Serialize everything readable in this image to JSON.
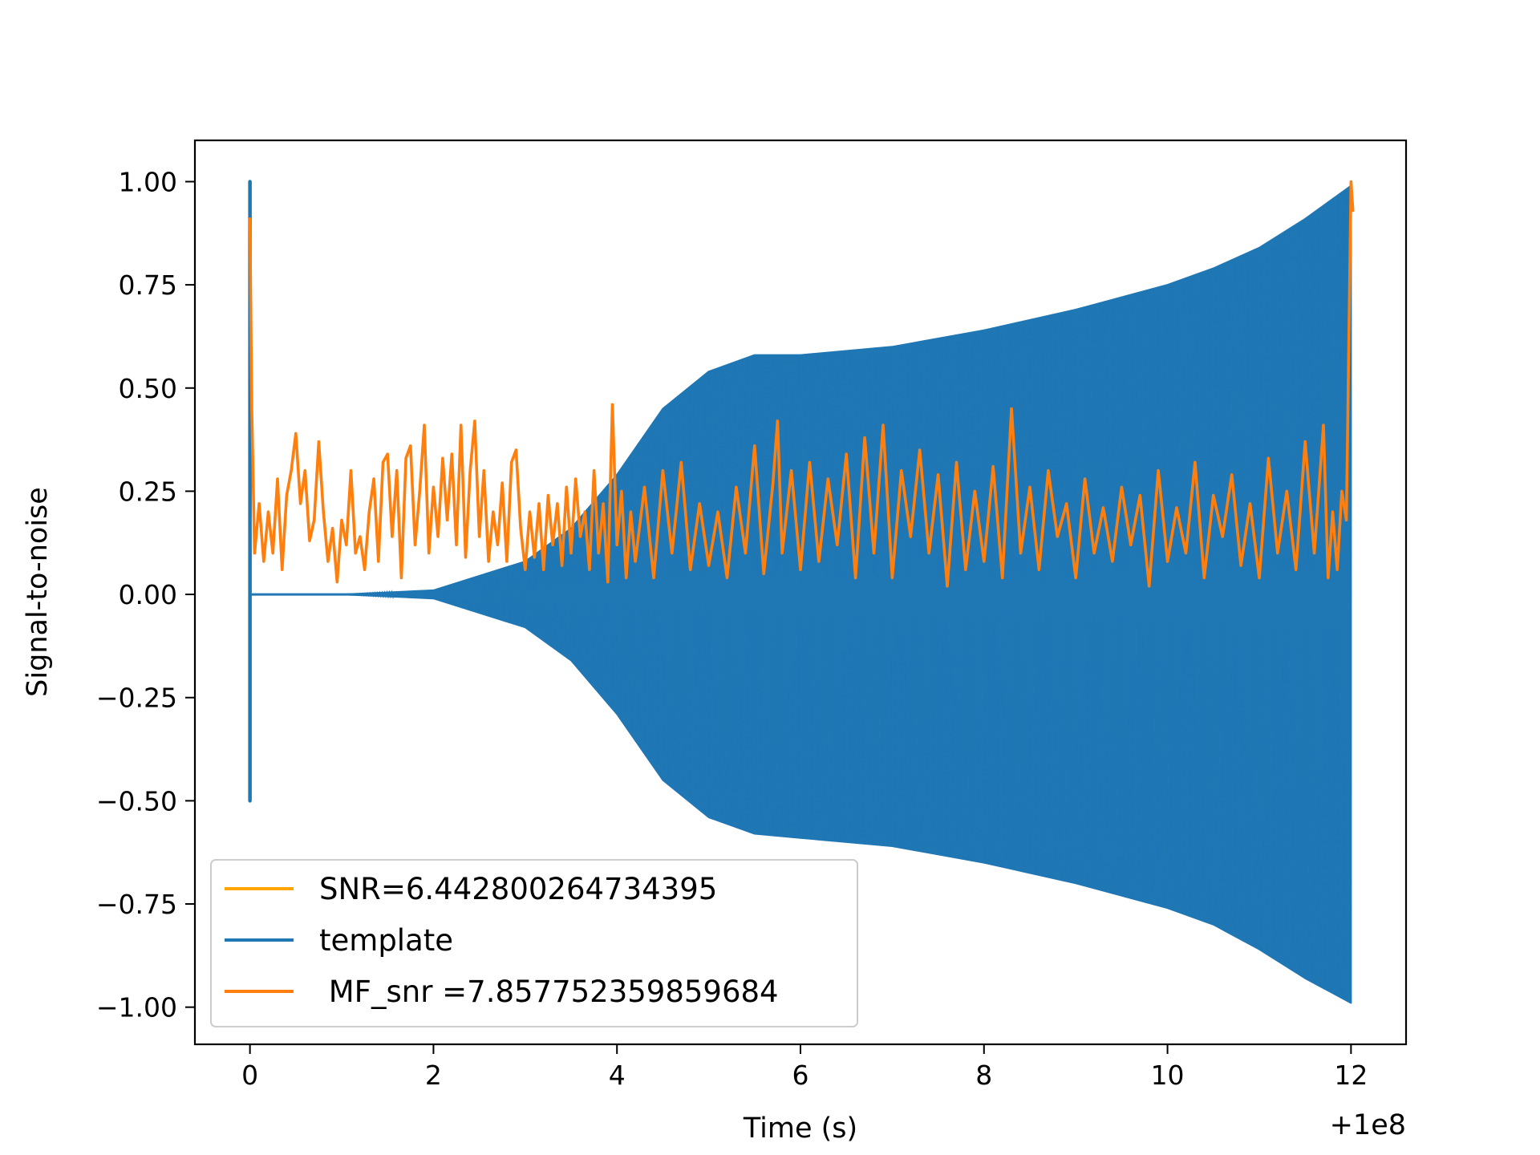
{
  "chart_data": {
    "type": "line",
    "title": "",
    "xlabel": "Time (s)",
    "ylabel": "Signal-to-noise",
    "x_offset_label": "+1e8",
    "xlim": [
      -0.6,
      12.6
    ],
    "ylim": [
      -1.09,
      1.1
    ],
    "x_ticks": [
      0,
      2,
      4,
      6,
      8,
      10,
      12
    ],
    "x_tick_labels": [
      "0",
      "2",
      "4",
      "6",
      "8",
      "10",
      "12"
    ],
    "y_ticks": [
      1.0,
      0.75,
      0.5,
      0.25,
      0.0,
      -0.25,
      -0.5,
      -0.75,
      -1.0
    ],
    "y_tick_labels": [
      "1.00",
      "0.75",
      "0.50",
      "0.25",
      "0.00",
      "−0.25",
      "−0.50",
      "−0.75",
      "−1.00"
    ],
    "grid": false,
    "legend_position": "lower-left",
    "series": [
      {
        "name": "SNR=6.442800264734395",
        "color": "#FFA500",
        "points": []
      },
      {
        "name": "template",
        "color": "#1f77b4",
        "style": "dense-oscillation-envelope",
        "x_range": [
          0.0,
          12.0
        ],
        "envelope_upper": [
          [
            0.0,
            0.0
          ],
          [
            1.0,
            0.0
          ],
          [
            2.0,
            0.01
          ],
          [
            3.0,
            0.08
          ],
          [
            3.5,
            0.16
          ],
          [
            4.0,
            0.29
          ],
          [
            4.5,
            0.45
          ],
          [
            5.0,
            0.54
          ],
          [
            5.5,
            0.58
          ],
          [
            6.0,
            0.58
          ],
          [
            7.0,
            0.6
          ],
          [
            8.0,
            0.64
          ],
          [
            9.0,
            0.69
          ],
          [
            10.0,
            0.75
          ],
          [
            10.5,
            0.79
          ],
          [
            11.0,
            0.84
          ],
          [
            11.5,
            0.91
          ],
          [
            12.0,
            0.99
          ]
        ],
        "envelope_lower": [
          [
            0.0,
            0.0
          ],
          [
            1.0,
            0.0
          ],
          [
            2.0,
            -0.01
          ],
          [
            3.0,
            -0.08
          ],
          [
            3.5,
            -0.16
          ],
          [
            4.0,
            -0.29
          ],
          [
            4.5,
            -0.45
          ],
          [
            5.0,
            -0.54
          ],
          [
            5.5,
            -0.58
          ],
          [
            6.0,
            -0.59
          ],
          [
            7.0,
            -0.61
          ],
          [
            8.0,
            -0.65
          ],
          [
            9.0,
            -0.7
          ],
          [
            10.0,
            -0.76
          ],
          [
            10.5,
            -0.8
          ],
          [
            11.0,
            -0.86
          ],
          [
            11.5,
            -0.93
          ],
          [
            12.0,
            -0.99
          ]
        ],
        "initial_spike": [
          1.0,
          -0.5
        ]
      },
      {
        "name": " MF_snr =7.857752359859684",
        "color": "#ff7f0e",
        "x_range": [
          0.0,
          12.0
        ],
        "points": [
          [
            0.0,
            0.91
          ],
          [
            0.02,
            0.45
          ],
          [
            0.05,
            0.1
          ],
          [
            0.1,
            0.22
          ],
          [
            0.15,
            0.08
          ],
          [
            0.2,
            0.2
          ],
          [
            0.25,
            0.1
          ],
          [
            0.3,
            0.28
          ],
          [
            0.35,
            0.06
          ],
          [
            0.4,
            0.24
          ],
          [
            0.45,
            0.3
          ],
          [
            0.5,
            0.39
          ],
          [
            0.55,
            0.22
          ],
          [
            0.6,
            0.3
          ],
          [
            0.65,
            0.13
          ],
          [
            0.7,
            0.18
          ],
          [
            0.75,
            0.37
          ],
          [
            0.8,
            0.2
          ],
          [
            0.85,
            0.08
          ],
          [
            0.9,
            0.16
          ],
          [
            0.95,
            0.03
          ],
          [
            1.0,
            0.18
          ],
          [
            1.05,
            0.12
          ],
          [
            1.1,
            0.3
          ],
          [
            1.15,
            0.1
          ],
          [
            1.2,
            0.14
          ],
          [
            1.25,
            0.06
          ],
          [
            1.3,
            0.2
          ],
          [
            1.35,
            0.28
          ],
          [
            1.4,
            0.08
          ],
          [
            1.45,
            0.32
          ],
          [
            1.5,
            0.34
          ],
          [
            1.55,
            0.14
          ],
          [
            1.6,
            0.3
          ],
          [
            1.65,
            0.04
          ],
          [
            1.7,
            0.33
          ],
          [
            1.75,
            0.36
          ],
          [
            1.8,
            0.12
          ],
          [
            1.85,
            0.25
          ],
          [
            1.9,
            0.41
          ],
          [
            1.95,
            0.1
          ],
          [
            2.0,
            0.26
          ],
          [
            2.05,
            0.14
          ],
          [
            2.1,
            0.33
          ],
          [
            2.15,
            0.18
          ],
          [
            2.2,
            0.34
          ],
          [
            2.25,
            0.12
          ],
          [
            2.3,
            0.41
          ],
          [
            2.35,
            0.09
          ],
          [
            2.4,
            0.3
          ],
          [
            2.45,
            0.42
          ],
          [
            2.5,
            0.14
          ],
          [
            2.55,
            0.3
          ],
          [
            2.6,
            0.08
          ],
          [
            2.65,
            0.2
          ],
          [
            2.7,
            0.12
          ],
          [
            2.75,
            0.27
          ],
          [
            2.8,
            0.08
          ],
          [
            2.85,
            0.32
          ],
          [
            2.9,
            0.35
          ],
          [
            2.95,
            0.16
          ],
          [
            3.0,
            0.06
          ],
          [
            3.05,
            0.2
          ],
          [
            3.1,
            0.09
          ],
          [
            3.15,
            0.22
          ],
          [
            3.2,
            0.06
          ],
          [
            3.25,
            0.24
          ],
          [
            3.3,
            0.12
          ],
          [
            3.35,
            0.22
          ],
          [
            3.4,
            0.07
          ],
          [
            3.45,
            0.26
          ],
          [
            3.5,
            0.1
          ],
          [
            3.55,
            0.28
          ],
          [
            3.6,
            0.14
          ],
          [
            3.65,
            0.2
          ],
          [
            3.7,
            0.06
          ],
          [
            3.75,
            0.3
          ],
          [
            3.8,
            0.1
          ],
          [
            3.85,
            0.22
          ],
          [
            3.9,
            0.03
          ],
          [
            3.95,
            0.46
          ],
          [
            4.0,
            0.12
          ],
          [
            4.05,
            0.25
          ],
          [
            4.1,
            0.04
          ],
          [
            4.15,
            0.2
          ],
          [
            4.2,
            0.08
          ],
          [
            4.3,
            0.26
          ],
          [
            4.4,
            0.04
          ],
          [
            4.5,
            0.3
          ],
          [
            4.6,
            0.1
          ],
          [
            4.7,
            0.32
          ],
          [
            4.8,
            0.06
          ],
          [
            4.9,
            0.22
          ],
          [
            5.0,
            0.07
          ],
          [
            5.1,
            0.2
          ],
          [
            5.2,
            0.04
          ],
          [
            5.3,
            0.26
          ],
          [
            5.4,
            0.1
          ],
          [
            5.5,
            0.36
          ],
          [
            5.6,
            0.05
          ],
          [
            5.7,
            0.27
          ],
          [
            5.75,
            0.42
          ],
          [
            5.8,
            0.1
          ],
          [
            5.9,
            0.3
          ],
          [
            6.0,
            0.06
          ],
          [
            6.1,
            0.32
          ],
          [
            6.2,
            0.08
          ],
          [
            6.3,
            0.28
          ],
          [
            6.4,
            0.12
          ],
          [
            6.5,
            0.34
          ],
          [
            6.6,
            0.04
          ],
          [
            6.7,
            0.38
          ],
          [
            6.8,
            0.1
          ],
          [
            6.9,
            0.41
          ],
          [
            7.0,
            0.04
          ],
          [
            7.1,
            0.3
          ],
          [
            7.2,
            0.14
          ],
          [
            7.3,
            0.35
          ],
          [
            7.4,
            0.1
          ],
          [
            7.5,
            0.29
          ],
          [
            7.6,
            0.02
          ],
          [
            7.7,
            0.32
          ],
          [
            7.8,
            0.06
          ],
          [
            7.9,
            0.25
          ],
          [
            8.0,
            0.08
          ],
          [
            8.1,
            0.31
          ],
          [
            8.2,
            0.04
          ],
          [
            8.3,
            0.45
          ],
          [
            8.4,
            0.1
          ],
          [
            8.5,
            0.26
          ],
          [
            8.6,
            0.06
          ],
          [
            8.7,
            0.3
          ],
          [
            8.8,
            0.14
          ],
          [
            8.9,
            0.22
          ],
          [
            9.0,
            0.04
          ],
          [
            9.1,
            0.28
          ],
          [
            9.2,
            0.1
          ],
          [
            9.3,
            0.21
          ],
          [
            9.4,
            0.08
          ],
          [
            9.5,
            0.26
          ],
          [
            9.6,
            0.12
          ],
          [
            9.7,
            0.24
          ],
          [
            9.8,
            0.02
          ],
          [
            9.9,
            0.3
          ],
          [
            10.0,
            0.08
          ],
          [
            10.1,
            0.21
          ],
          [
            10.2,
            0.1
          ],
          [
            10.3,
            0.32
          ],
          [
            10.4,
            0.04
          ],
          [
            10.5,
            0.24
          ],
          [
            10.6,
            0.14
          ],
          [
            10.7,
            0.29
          ],
          [
            10.8,
            0.07
          ],
          [
            10.9,
            0.22
          ],
          [
            11.0,
            0.04
          ],
          [
            11.1,
            0.33
          ],
          [
            11.2,
            0.1
          ],
          [
            11.3,
            0.25
          ],
          [
            11.4,
            0.06
          ],
          [
            11.5,
            0.37
          ],
          [
            11.6,
            0.1
          ],
          [
            11.7,
            0.41
          ],
          [
            11.75,
            0.04
          ],
          [
            11.8,
            0.2
          ],
          [
            11.85,
            0.06
          ],
          [
            11.9,
            0.25
          ],
          [
            11.95,
            0.18
          ],
          [
            12.0,
            1.0
          ],
          [
            12.02,
            0.93
          ]
        ]
      }
    ]
  }
}
